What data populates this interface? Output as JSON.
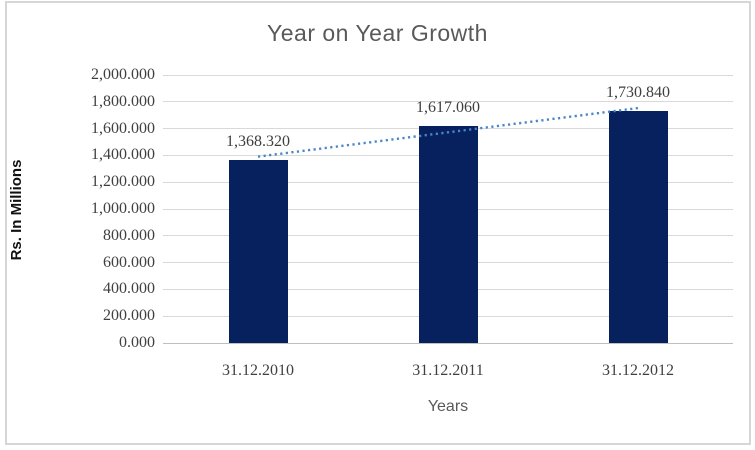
{
  "chart_data": {
    "type": "bar",
    "title": "Year on Year Growth",
    "xlabel": "Years",
    "ylabel": "Rs. In Millions",
    "categories": [
      "31.12.2010",
      "31.12.2011",
      "31.12.2012"
    ],
    "values": [
      1368.32,
      1617.06,
      1730.84
    ],
    "value_labels": [
      "1,368.320",
      "1,617.060",
      "1,730.840"
    ],
    "ylim": [
      0,
      2000
    ],
    "ytick_step": 200,
    "ytick_labels_top_down": [
      "2,000.000",
      "1,800.000",
      "1,600.000",
      "1,400.000",
      "1,200.000",
      "1,000.000",
      "800.000",
      "600.000",
      "400.000",
      "200.000",
      "0.000"
    ],
    "grid": true,
    "legend": false,
    "trendline": {
      "type": "linear",
      "style": "dotted"
    },
    "colors": {
      "bar": "#06215e",
      "trendline": "#4a86c8",
      "gridline": "#d9d9d9",
      "axis_line": "#bfbfbf",
      "title_text": "#595959",
      "tick_text": "#3f3f3f",
      "axis_title_text": "#111111",
      "frame_border": "#d6d6d6",
      "background": "#ffffff"
    }
  }
}
